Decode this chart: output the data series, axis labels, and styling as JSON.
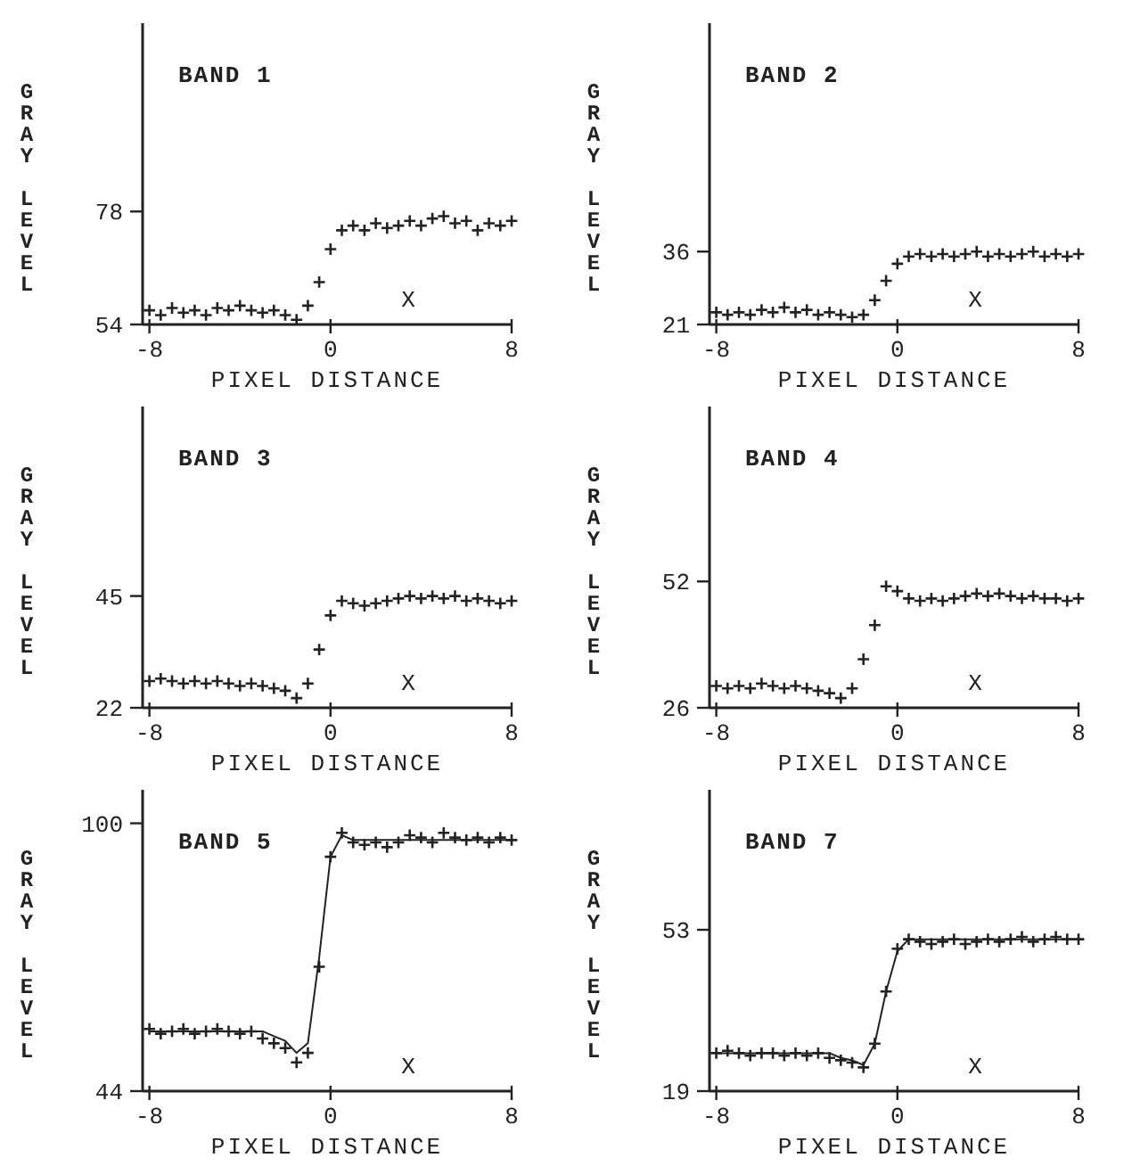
{
  "chart_data": [
    {
      "type": "scatter",
      "title": "BAND 1",
      "xlabel": "PIXEL DISTANCE",
      "ylabel": "GRAY LEVEL",
      "xlim": [
        -8.3,
        8
      ],
      "xticks": [
        -8,
        0,
        8
      ],
      "ylim": [
        54,
        118
      ],
      "yticks": [
        54,
        78
      ],
      "annotations": [
        "X"
      ],
      "series": [
        {
          "type": "scatter",
          "marker": "cross",
          "color": "#222222",
          "x": [
            -8,
            -7.5,
            -7,
            -6.5,
            -6,
            -5.5,
            -5,
            -4.5,
            -4,
            -3.5,
            -3,
            -2.5,
            -2,
            -1.5,
            -1,
            -0.5,
            0,
            0.5,
            1,
            1.5,
            2,
            2.5,
            3,
            3.5,
            4,
            4.5,
            5,
            5.5,
            6,
            6.5,
            7,
            7.5,
            8
          ],
          "values": [
            57,
            56,
            57.5,
            56.5,
            57,
            56,
            57.5,
            57,
            58,
            57,
            56.5,
            57,
            56,
            55,
            58,
            63,
            70,
            74,
            75,
            74,
            75.5,
            74.5,
            75,
            76,
            75,
            76.5,
            77,
            75.5,
            76,
            74,
            75.5,
            75,
            76
          ]
        }
      ]
    },
    {
      "type": "scatter",
      "title": "BAND 2",
      "xlabel": "PIXEL DISTANCE",
      "ylabel": "GRAY LEVEL",
      "xlim": [
        -8.3,
        8
      ],
      "xticks": [
        -8,
        0,
        8
      ],
      "ylim": [
        21,
        83
      ],
      "yticks": [
        21,
        36
      ],
      "annotations": [
        "X"
      ],
      "series": [
        {
          "type": "scatter",
          "marker": "cross",
          "color": "#222222",
          "x": [
            -8,
            -7.5,
            -7,
            -6.5,
            -6,
            -5.5,
            -5,
            -4.5,
            -4,
            -3.5,
            -3,
            -2.5,
            -2,
            -1.5,
            -1,
            -0.5,
            0,
            0.5,
            1,
            1.5,
            2,
            2.5,
            3,
            3.5,
            4,
            4.5,
            5,
            5.5,
            6,
            6.5,
            7,
            7.5,
            8
          ],
          "values": [
            23.5,
            23,
            23.5,
            23,
            24,
            23.5,
            24.5,
            23.5,
            24,
            23,
            23.5,
            23,
            22.5,
            23,
            26,
            30,
            33.5,
            35,
            35.5,
            35,
            35.5,
            35,
            35.5,
            36,
            35,
            35.5,
            35,
            35.5,
            36,
            35,
            35.5,
            35,
            35.5
          ]
        }
      ]
    },
    {
      "type": "scatter",
      "title": "BAND 3",
      "xlabel": "PIXEL DISTANCE",
      "ylabel": "GRAY LEVEL",
      "xlim": [
        -8.3,
        8
      ],
      "xticks": [
        -8,
        0,
        8
      ],
      "ylim": [
        22,
        84
      ],
      "yticks": [
        22,
        45
      ],
      "annotations": [
        "X"
      ],
      "series": [
        {
          "type": "scatter",
          "marker": "cross",
          "color": "#222222",
          "x": [
            -8,
            -7.5,
            -7,
            -6.5,
            -6,
            -5.5,
            -5,
            -4.5,
            -4,
            -3.5,
            -3,
            -2.5,
            -2,
            -1.5,
            -1,
            -0.5,
            0,
            0.5,
            1,
            1.5,
            2,
            2.5,
            3,
            3.5,
            4,
            4.5,
            5,
            5.5,
            6,
            6.5,
            7,
            7.5,
            8
          ],
          "values": [
            27.5,
            28,
            27.5,
            27,
            27.5,
            27,
            27.5,
            27,
            26.5,
            27,
            26.5,
            26,
            25.5,
            24,
            27,
            34,
            41,
            44,
            43.5,
            43,
            43.5,
            44,
            44.5,
            45,
            44.5,
            45,
            44.5,
            45,
            44,
            44.5,
            44,
            43.5,
            44
          ]
        }
      ]
    },
    {
      "type": "scatter",
      "title": "BAND 4",
      "xlabel": "PIXEL DISTANCE",
      "ylabel": "GRAY LEVEL",
      "xlim": [
        -8.3,
        8
      ],
      "xticks": [
        -8,
        0,
        8
      ],
      "ylim": [
        26,
        88
      ],
      "yticks": [
        26,
        52
      ],
      "annotations": [
        "X"
      ],
      "series": [
        {
          "type": "scatter",
          "marker": "cross",
          "color": "#222222",
          "x": [
            -8,
            -7.5,
            -7,
            -6.5,
            -6,
            -5.5,
            -5,
            -4.5,
            -4,
            -3.5,
            -3,
            -2.5,
            -2,
            -1.5,
            -1,
            -0.5,
            0,
            0.5,
            1,
            1.5,
            2,
            2.5,
            3,
            3.5,
            4,
            4.5,
            5,
            5.5,
            6,
            6.5,
            7,
            7.5,
            8
          ],
          "values": [
            30.5,
            30,
            30.5,
            30,
            31,
            30.5,
            30,
            30.5,
            30,
            29.5,
            29,
            28,
            30,
            36,
            43,
            51,
            50,
            48.5,
            48,
            48.5,
            48,
            48.5,
            49,
            49.5,
            49,
            49.5,
            49,
            48.5,
            49,
            48.5,
            48.5,
            48,
            48.5
          ]
        }
      ]
    },
    {
      "type": "scatter",
      "title": "BAND 5",
      "xlabel": "PIXEL DISTANCE",
      "ylabel": "GRAY LEVEL",
      "xlim": [
        -8.3,
        8
      ],
      "xticks": [
        -8,
        0,
        8
      ],
      "ylim": [
        44,
        107
      ],
      "yticks": [
        44,
        100
      ],
      "annotations": [
        "X"
      ],
      "series": [
        {
          "type": "scatter",
          "marker": "cross",
          "color": "#222222",
          "x": [
            -8,
            -7.5,
            -7,
            -6.5,
            -6,
            -5.5,
            -5,
            -4.5,
            -4,
            -3.5,
            -3,
            -2.5,
            -2,
            -1.5,
            -1,
            -0.5,
            0,
            0.5,
            1,
            1.5,
            2,
            2.5,
            3,
            3.5,
            4,
            4.5,
            5,
            5.5,
            6,
            6.5,
            7,
            7.5,
            8
          ],
          "values": [
            57,
            56,
            56.5,
            57,
            56,
            56.5,
            57,
            56.5,
            56,
            56.5,
            55,
            54,
            53,
            50,
            52,
            70,
            93,
            98,
            96,
            95.5,
            96,
            95,
            96,
            97.5,
            97,
            96,
            98,
            97,
            96.5,
            97,
            96,
            97,
            96.5
          ]
        },
        {
          "type": "line",
          "line_style": "solid",
          "color": "#222222",
          "x": [
            -8,
            -7.5,
            -7,
            -6.5,
            -6,
            -5.5,
            -5,
            -4.5,
            -4,
            -3.5,
            -3,
            -2.5,
            -2,
            -1.5,
            -1,
            -0.5,
            0,
            0.5,
            1,
            1.5,
            2,
            2.5,
            3,
            3.5,
            4,
            4.5,
            5,
            5.5,
            6,
            6.5,
            7,
            7.5,
            8
          ],
          "values": [
            56.5,
            56.5,
            56.5,
            56.5,
            56.5,
            56.5,
            56.5,
            56.5,
            56.5,
            56.5,
            56.5,
            55.5,
            54.5,
            52,
            54,
            72,
            93,
            97.5,
            96.5,
            96.5,
            96.5,
            96.5,
            96.5,
            96.5,
            96.5,
            96.5,
            96.5,
            96.5,
            96.5,
            96.5,
            96.5,
            96.5,
            96.5
          ]
        }
      ]
    },
    {
      "type": "scatter",
      "title": "BAND 7",
      "xlabel": "PIXEL DISTANCE",
      "ylabel": "GRAY LEVEL",
      "xlim": [
        -8.3,
        8
      ],
      "xticks": [
        -8,
        0,
        8
      ],
      "ylim": [
        19,
        82.5
      ],
      "yticks": [
        19,
        53
      ],
      "annotations": [
        "X"
      ],
      "series": [
        {
          "type": "scatter",
          "marker": "cross",
          "color": "#222222",
          "x": [
            -8,
            -7.5,
            -7,
            -6.5,
            -6,
            -5.5,
            -5,
            -4.5,
            -4,
            -3.5,
            -3,
            -2.5,
            -2,
            -1.5,
            -1,
            -0.5,
            0,
            0.5,
            1,
            1.5,
            2,
            2.5,
            3,
            3.5,
            4,
            4.5,
            5,
            5.5,
            6,
            6.5,
            7,
            7.5,
            8
          ],
          "values": [
            27,
            27.5,
            27,
            26.5,
            27,
            27,
            26.5,
            27,
            26.5,
            27,
            26,
            25.5,
            25,
            24,
            29,
            40,
            49,
            51,
            50.5,
            50,
            50.5,
            51,
            50,
            50.5,
            51,
            50.5,
            51,
            51.5,
            50.5,
            51,
            51.5,
            51,
            51
          ]
        },
        {
          "type": "line",
          "line_style": "solid",
          "color": "#222222",
          "x": [
            -8,
            -7.5,
            -7,
            -6.5,
            -6,
            -5.5,
            -5,
            -4.5,
            -4,
            -3.5,
            -3,
            -2.5,
            -2,
            -1.5,
            -1,
            -0.5,
            0,
            0.5,
            1,
            1.5,
            2,
            2.5,
            3,
            3.5,
            4,
            4.5,
            5,
            5.5,
            6,
            6.5,
            7,
            7.5,
            8
          ],
          "values": [
            27,
            27,
            27,
            27,
            27,
            27,
            27,
            27,
            27,
            27,
            27,
            26,
            25.5,
            24.5,
            29,
            40,
            48.5,
            51,
            51,
            51,
            51,
            51,
            51,
            51,
            51,
            51,
            51,
            51,
            51,
            51,
            51,
            51,
            51
          ]
        }
      ]
    }
  ]
}
